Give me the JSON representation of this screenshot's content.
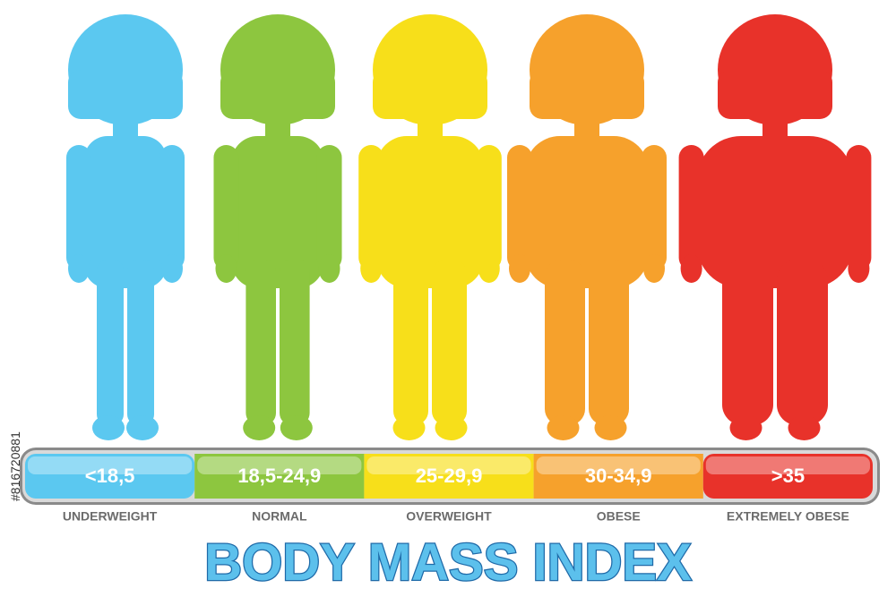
{
  "side_id": "#816720881",
  "categories": [
    {
      "range": "<18,5",
      "label": "UNDERWEIGHT",
      "color": "#5bc8f0"
    },
    {
      "range": "18,5-24,9",
      "label": "NORMAL",
      "color": "#8dc63f"
    },
    {
      "range": "25-29,9",
      "label": "OVERWEIGHT",
      "color": "#f7df1a"
    },
    {
      "range": "30-34,9",
      "label": "OBESE",
      "color": "#f6a12c"
    },
    {
      "range": ">35",
      "label": "EXTREMELY OBESE",
      "color": "#e8322a"
    }
  ],
  "title": "BODY MASS INDEX"
}
